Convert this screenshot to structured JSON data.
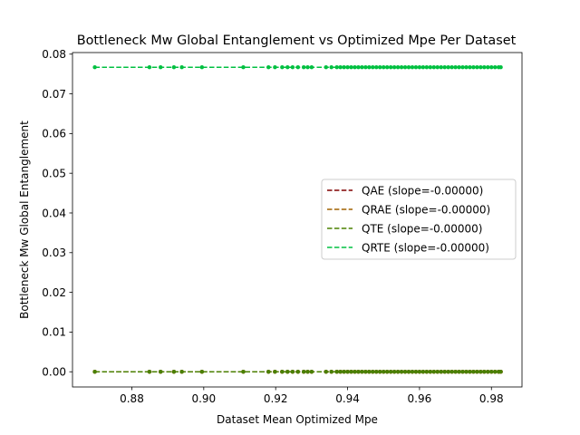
{
  "chart_data": {
    "type": "scatter",
    "title": "Bottleneck Mw Global Entanglement vs Optimized Mpe Per Dataset",
    "xlabel": "Dataset Mean Optimized Mpe",
    "ylabel": "Bottleneck Mw Global Entanglement",
    "xlim": [
      0.8635,
      0.9885
    ],
    "ylim": [
      -0.00383,
      0.0804
    ],
    "xticks": [
      "0.88",
      "0.90",
      "0.92",
      "0.94",
      "0.96",
      "0.98"
    ],
    "xtick_values": [
      0.88,
      0.9,
      0.92,
      0.94,
      0.96,
      0.98
    ],
    "yticks": [
      "0.00",
      "0.01",
      "0.02",
      "0.03",
      "0.04",
      "0.05",
      "0.06",
      "0.07",
      "0.08"
    ],
    "ytick_values": [
      0.0,
      0.01,
      0.02,
      0.03,
      0.04,
      0.05,
      0.06,
      0.07,
      0.08
    ],
    "grid": false,
    "legend_position": "center-right",
    "x": [
      0.8697,
      0.8849,
      0.888,
      0.8917,
      0.8939,
      0.8995,
      0.911,
      0.918,
      0.9198,
      0.9218,
      0.9233,
      0.9247,
      0.9262,
      0.9278,
      0.9289,
      0.93,
      0.934,
      0.9355,
      0.937,
      0.938,
      0.939,
      0.94,
      0.941,
      0.942,
      0.943,
      0.944,
      0.945,
      0.946,
      0.947,
      0.948,
      0.949,
      0.95,
      0.951,
      0.952,
      0.953,
      0.954,
      0.955,
      0.956,
      0.957,
      0.958,
      0.959,
      0.96,
      0.961,
      0.962,
      0.963,
      0.964,
      0.965,
      0.966,
      0.967,
      0.968,
      0.969,
      0.97,
      0.971,
      0.972,
      0.973,
      0.974,
      0.975,
      0.976,
      0.977,
      0.978,
      0.979,
      0.98,
      0.981,
      0.982,
      0.9826
    ],
    "series": [
      {
        "name": "QAE (slope=-0.00000)",
        "color": "#800000",
        "y": 0.0,
        "line_x": [
          0.8697,
          0.9826
        ]
      },
      {
        "name": "QRAE (slope=-0.00000)",
        "color": "#a06000",
        "y": 0.0,
        "line_x": [
          0.8697,
          0.9826
        ]
      },
      {
        "name": "QTE (slope=-0.00000)",
        "color": "#4a8000",
        "y": 0.0,
        "line_x": [
          0.8697,
          0.9826
        ]
      },
      {
        "name": "QRTE (slope=-0.00000)",
        "color": "#00c040",
        "y": 0.0767,
        "line_x": [
          0.8697,
          0.9826
        ]
      }
    ]
  }
}
